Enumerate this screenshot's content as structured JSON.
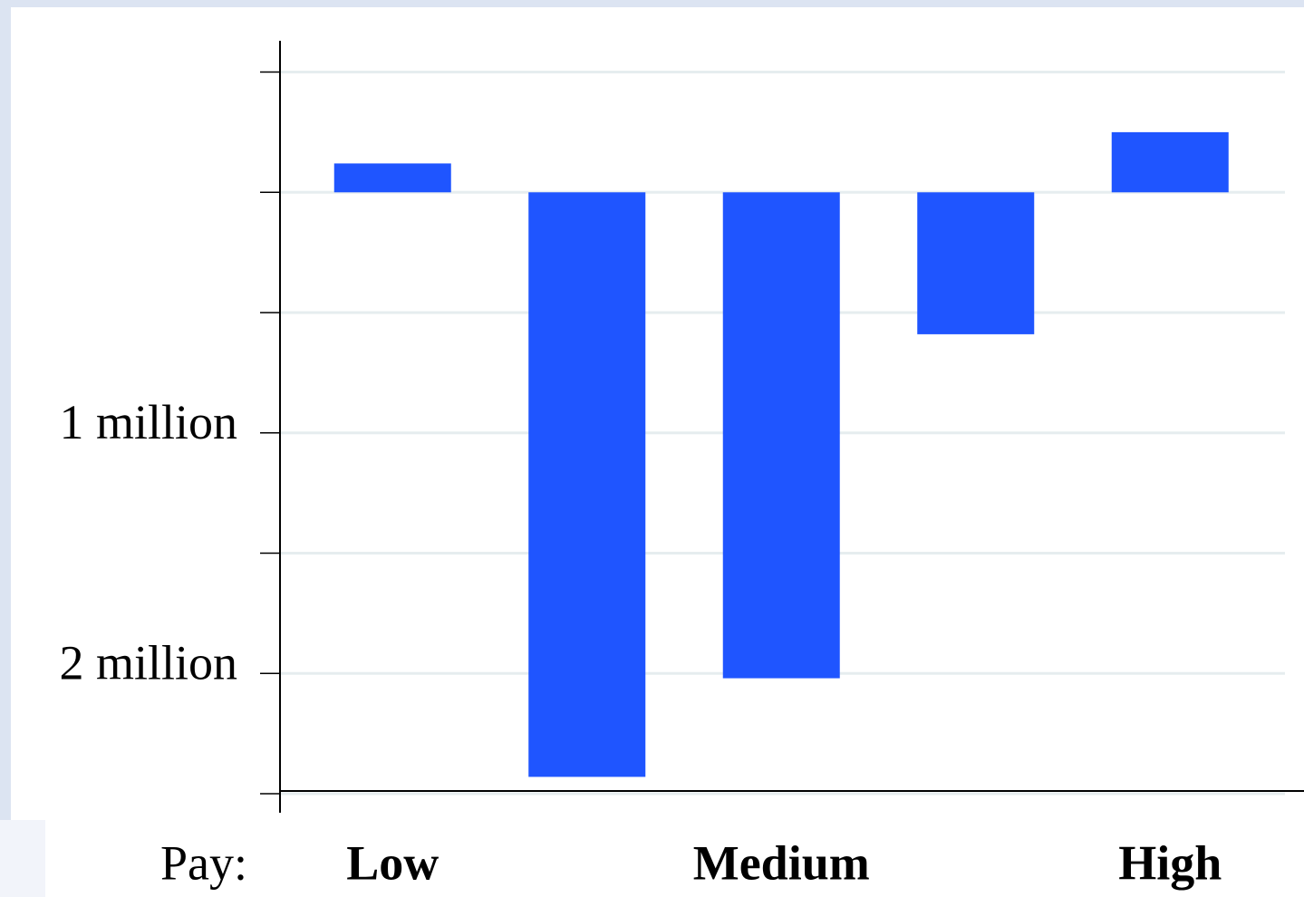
{
  "chart_data": {
    "type": "bar",
    "categories": [
      "Low",
      null,
      "Medium",
      null,
      "High"
    ],
    "values": [
      -120000,
      2430000,
      2020000,
      590000,
      -250000
    ],
    "color": "#1f55ff",
    "x_label": "Pay:",
    "ylim": [
      -630000,
      2500000
    ],
    "y_inverted": true,
    "yticks": [
      -500000,
      0,
      500000,
      {
        "value": 1000000,
        "label": "1 million"
      },
      1500000,
      {
        "value": 2000000,
        "label": "2 million"
      },
      2500000
    ],
    "grid": true
  }
}
